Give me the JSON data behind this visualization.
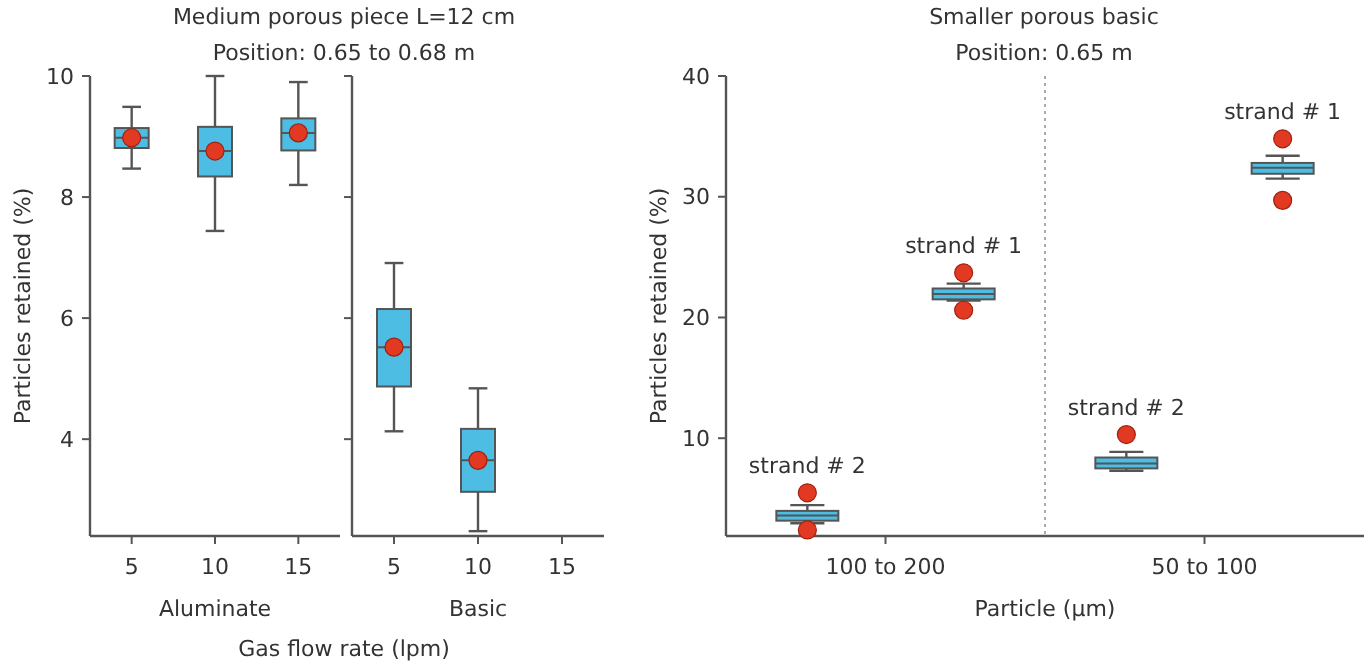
{
  "chart_data": [
    {
      "type": "box",
      "title": "Medium porous piece L=12 cm",
      "subtitle": "Position: 0.65 to 0.68 m",
      "ylabel": "Particles retained (%)",
      "xlabel": "Aluminate",
      "annotations": [
        "Gas flow rate (lpm)"
      ],
      "categories": [
        "5",
        "10",
        "15"
      ],
      "ylim": [
        2.4,
        10
      ],
      "yticks": [
        4,
        6,
        8,
        10
      ],
      "marker": "circle",
      "series": [
        {
          "color": "#4dbde3",
          "boxes": [
            {
              "low": 8.47,
              "q1": 8.81,
              "median": 8.98,
              "q3": 9.14,
              "high": 9.49,
              "mean": 8.98
            },
            {
              "low": 7.44,
              "q1": 8.34,
              "median": 8.76,
              "q3": 9.16,
              "high": 10.0,
              "mean": 8.76
            },
            {
              "low": 8.2,
              "q1": 8.77,
              "median": 9.06,
              "q3": 9.3,
              "high": 9.9,
              "mean": 9.06
            }
          ]
        }
      ]
    },
    {
      "type": "box",
      "xlabel": "Basic",
      "categories": [
        "5",
        "10",
        "15"
      ],
      "ylim": [
        2.4,
        10
      ],
      "yticks": [
        {
          "value": 4,
          "label": null
        },
        {
          "value": 6,
          "label": null
        },
        {
          "value": 8,
          "label": null
        },
        {
          "value": 10,
          "label": null
        }
      ],
      "tick_labels": "x",
      "marker": "circle",
      "series": [
        {
          "color": "#4dbde3",
          "boxes": [
            {
              "low": 4.13,
              "q1": 4.87,
              "median": 5.52,
              "q3": 6.15,
              "high": 6.91,
              "mean": 5.52
            },
            {
              "low": 2.48,
              "q1": 3.13,
              "median": 3.65,
              "q3": 4.17,
              "high": 4.84,
              "mean": 3.65
            },
            null
          ]
        }
      ]
    },
    {
      "type": "box",
      "title": "Smaller porous basic",
      "subtitle": "Position: 0.65 m",
      "ylabel": "Particles retained (%)",
      "xlabel": "Particle (µm)",
      "categories": [
        "100 to 200",
        "50 to 100"
      ],
      "ylim": [
        1.9,
        40
      ],
      "yticks": [
        10,
        20,
        30,
        40
      ],
      "series": [
        {
          "name": "strand # 2",
          "color": "#4dbde3",
          "boxes": [
            {
              "low": 2.96,
              "q1": 3.17,
              "median": 3.6,
              "q3": 3.98,
              "high": 4.46,
              "outliers": [
                5.48,
                2.4
              ]
            },
            {
              "low": 7.3,
              "q1": 7.5,
              "median": 7.9,
              "q3": 8.4,
              "high": 8.87,
              "outliers": [
                10.3
              ]
            }
          ]
        },
        {
          "name": "strand # 1",
          "color": "#4dbde3",
          "boxes": [
            {
              "low": 21.4,
              "q1": 21.5,
              "median": 21.95,
              "q3": 22.4,
              "high": 22.8,
              "outliers": [
                23.7,
                20.6
              ]
            },
            {
              "low": 31.5,
              "q1": 31.9,
              "median": 32.4,
              "q3": 32.8,
              "high": 33.4,
              "outliers": [
                34.8,
                29.7
              ]
            }
          ]
        }
      ]
    }
  ]
}
